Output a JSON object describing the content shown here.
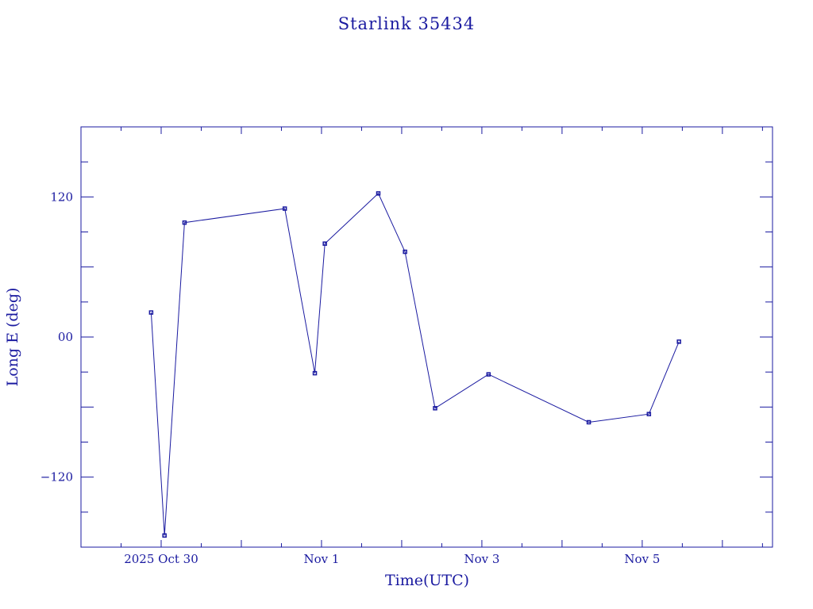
{
  "chart_data": {
    "type": "line",
    "title": "Starlink 35434",
    "xlabel": "Time(UTC)",
    "ylabel": "Long E (deg)",
    "x_scale": "time",
    "xlim": [
      "2025-10-29T00:00",
      "2025-11-06T15:00"
    ],
    "ylim": [
      -180,
      180
    ],
    "x_ticks": [
      {
        "value": "2025-10-30T00:00",
        "label": "2025 Oct 30"
      },
      {
        "value": "2025-11-01T00:00",
        "label": "Nov  1"
      },
      {
        "value": "2025-11-03T00:00",
        "label": "Nov  3"
      },
      {
        "value": "2025-11-05T00:00",
        "label": "Nov  5"
      }
    ],
    "y_ticks": [
      {
        "value": 120,
        "label": "120"
      },
      {
        "value": 0,
        "label": "00"
      },
      {
        "value": -120,
        "label": "−120"
      }
    ],
    "grid": false,
    "legend": "none",
    "color": "#1a1aa0",
    "series": [
      {
        "points": [
          {
            "x": "2025-10-29T21:00",
            "y": 21
          },
          {
            "x": "2025-10-30T01:00",
            "y": -170
          },
          {
            "x": "2025-10-30T07:00",
            "y": 98
          },
          {
            "x": "2025-10-31T13:00",
            "y": 110
          },
          {
            "x": "2025-10-31T22:00",
            "y": -31
          },
          {
            "x": "2025-11-01T01:00",
            "y": 80
          },
          {
            "x": "2025-11-01T17:00",
            "y": 123
          },
          {
            "x": "2025-11-02T01:00",
            "y": 73
          },
          {
            "x": "2025-11-02T10:00",
            "y": -61
          },
          {
            "x": "2025-11-03T02:00",
            "y": -32
          },
          {
            "x": "2025-11-04T08:00",
            "y": -73
          },
          {
            "x": "2025-11-05T02:00",
            "y": -66
          },
          {
            "x": "2025-11-05T11:00",
            "y": -4
          }
        ]
      }
    ]
  }
}
